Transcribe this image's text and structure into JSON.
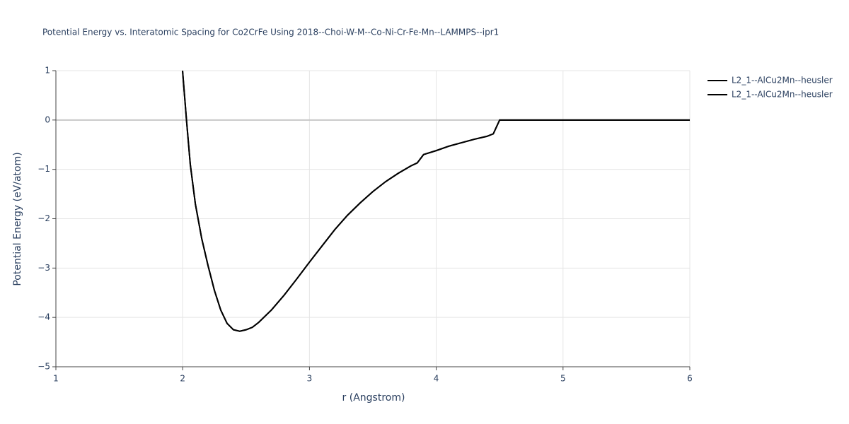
{
  "chart_data": {
    "type": "line",
    "title": "Potential Energy vs. Interatomic Spacing for Co2CrFe Using 2018--Choi-W-M--Co-Ni-Cr-Fe-Mn--LAMMPS--ipr1",
    "x_label": "r (Angstrom)",
    "y_label": "Potential Energy (eV/atom)",
    "xlim": [
      1,
      6
    ],
    "ylim": [
      -5,
      1
    ],
    "xticks": [
      1,
      2,
      3,
      4,
      5,
      6
    ],
    "yticks": [
      1,
      0,
      {
        "value": -1,
        "label": "−1"
      },
      {
        "value": -2,
        "label": "−2"
      },
      {
        "value": -3,
        "label": "−3"
      },
      {
        "value": -4,
        "label": "−4"
      },
      {
        "value": -5,
        "label": "−5"
      }
    ],
    "grid": true,
    "legend": "right",
    "series": [
      {
        "name": "L2_1--AlCu2Mn--heusler",
        "color": "#000000",
        "x": [
          1.999,
          2.03,
          2.06,
          2.1,
          2.15,
          2.2,
          2.25,
          2.3,
          2.35,
          2.4,
          2.45,
          2.5,
          2.55,
          2.6,
          2.7,
          2.8,
          2.9,
          3.0,
          3.1,
          3.2,
          3.3,
          3.4,
          3.5,
          3.6,
          3.7,
          3.8,
          3.85,
          3.9,
          4.0,
          4.1,
          4.2,
          4.3,
          4.4,
          4.45,
          4.5,
          5.0,
          6.0
        ],
        "values": [
          1.0,
          0.0,
          -0.9,
          -1.7,
          -2.4,
          -2.95,
          -3.45,
          -3.85,
          -4.12,
          -4.25,
          -4.28,
          -4.25,
          -4.2,
          -4.1,
          -3.85,
          -3.55,
          -3.22,
          -2.88,
          -2.55,
          -2.22,
          -1.93,
          -1.68,
          -1.45,
          -1.25,
          -1.08,
          -0.93,
          -0.87,
          -0.7,
          -0.62,
          -0.53,
          -0.46,
          -0.39,
          -0.33,
          -0.28,
          0.0,
          0.0,
          0.0
        ]
      },
      {
        "name": "L2_1--AlCu2Mn--heusler",
        "color": "#000000",
        "x": [
          1.999,
          2.03,
          2.06,
          2.1,
          2.15,
          2.2,
          2.25,
          2.3,
          2.35,
          2.4,
          2.45,
          2.5,
          2.55,
          2.6,
          2.7,
          2.8,
          2.9,
          3.0,
          3.1,
          3.2,
          3.3,
          3.4,
          3.5,
          3.6,
          3.7,
          3.8,
          3.85,
          3.9,
          4.0,
          4.1,
          4.2,
          4.3,
          4.4,
          4.45,
          4.5,
          5.0,
          6.0
        ],
        "values": [
          1.0,
          0.0,
          -0.9,
          -1.7,
          -2.4,
          -2.95,
          -3.45,
          -3.85,
          -4.12,
          -4.25,
          -4.28,
          -4.25,
          -4.2,
          -4.1,
          -3.85,
          -3.55,
          -3.22,
          -2.88,
          -2.55,
          -2.22,
          -1.93,
          -1.68,
          -1.45,
          -1.25,
          -1.08,
          -0.93,
          -0.87,
          -0.7,
          -0.62,
          -0.53,
          -0.46,
          -0.39,
          -0.33,
          -0.28,
          0.0,
          0.0,
          0.0
        ]
      }
    ]
  }
}
